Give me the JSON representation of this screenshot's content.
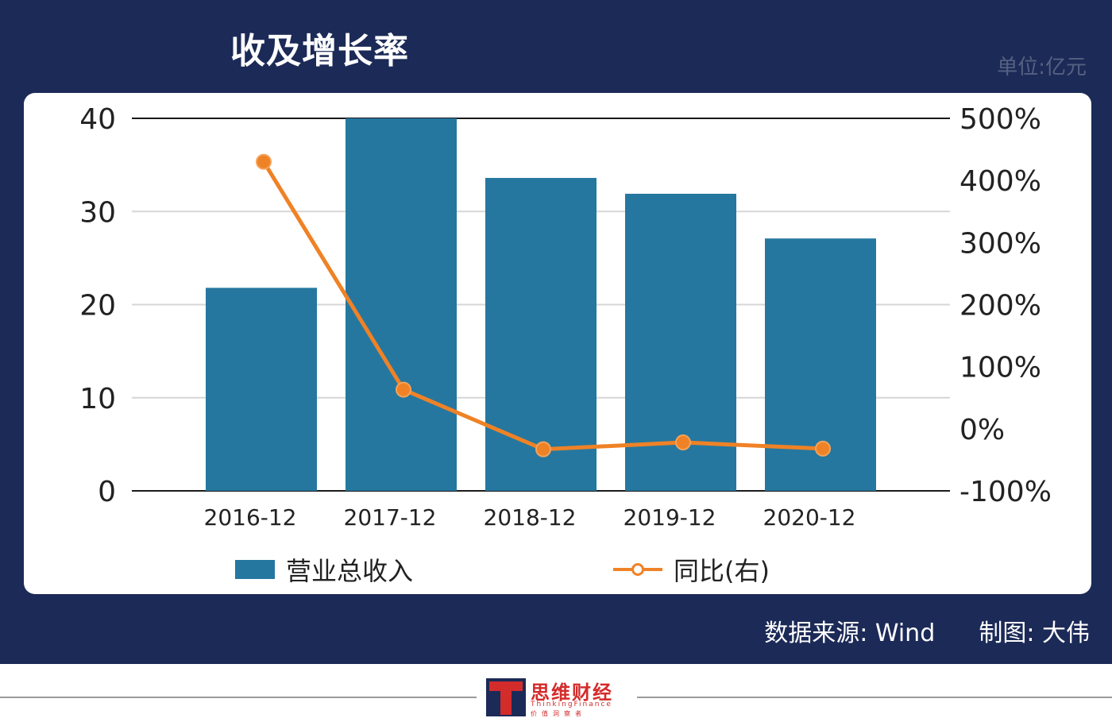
{
  "header": {
    "title": "收及增长率",
    "unit": "单位:亿元"
  },
  "footer": {
    "source": "数据来源: Wind",
    "author": "制图: 大伟",
    "logo_text": "思维财经",
    "logo_en": "ThinkingFinance",
    "logo_sub": "价值洞察者"
  },
  "colors": {
    "frame": "#1c2a57",
    "bar": "#25779f",
    "line": "#ef8226"
  },
  "chart_data": {
    "type": "bar",
    "categories": [
      "2016-12",
      "2017-12",
      "2018-12",
      "2019-12",
      "2020-12"
    ],
    "series": [
      {
        "name": "营业总收入",
        "type": "bar",
        "axis": "left",
        "values": [
          21.8,
          40.0,
          33.6,
          31.9,
          27.1
        ]
      },
      {
        "name": "同比(右)",
        "type": "line",
        "axis": "right",
        "values": [
          430,
          63,
          -33,
          -22,
          -32
        ]
      }
    ],
    "y_left": {
      "ylim": [
        0,
        40
      ],
      "ticks": [
        "0",
        "10",
        "20",
        "30",
        "40"
      ]
    },
    "y_right": {
      "ylim": [
        -100,
        500
      ],
      "ticks": [
        "-100%",
        "0%",
        "100%",
        "200%",
        "300%",
        "400%",
        "500%"
      ]
    },
    "grid": true,
    "legend_position": "bottom"
  }
}
